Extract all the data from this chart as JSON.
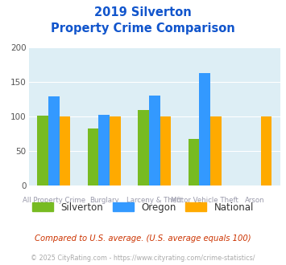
{
  "title_line1": "2019 Silverton",
  "title_line2": "Property Crime Comparison",
  "categories": [
    "All Property Crime",
    "Burglary",
    "Larceny & Theft",
    "Motor Vehicle Theft",
    "Arson"
  ],
  "cat_labels_top": [
    "",
    "Burglary",
    "",
    "Motor Vehicle Theft",
    ""
  ],
  "cat_labels_bot": [
    "All Property Crime",
    "",
    "Larceny & Theft",
    "",
    "Arson"
  ],
  "silverton": [
    101,
    83,
    110,
    68,
    null
  ],
  "oregon": [
    129,
    103,
    130,
    163,
    null
  ],
  "national": [
    100,
    100,
    100,
    100,
    100
  ],
  "silverton_color": "#77bb22",
  "oregon_color": "#3399ff",
  "national_color": "#ffaa00",
  "bg_color": "#ddeef5",
  "title_color": "#1155cc",
  "label_color": "#9999aa",
  "ylabel_max": 200,
  "yticks": [
    0,
    50,
    100,
    150,
    200
  ],
  "footnote1": "Compared to U.S. average. (U.S. average equals 100)",
  "footnote2": "© 2025 CityRating.com - https://www.cityrating.com/crime-statistics/",
  "footnote1_color": "#cc3300",
  "footnote2_color": "#aaaaaa",
  "legend_labels": [
    "Silverton",
    "Oregon",
    "National"
  ]
}
